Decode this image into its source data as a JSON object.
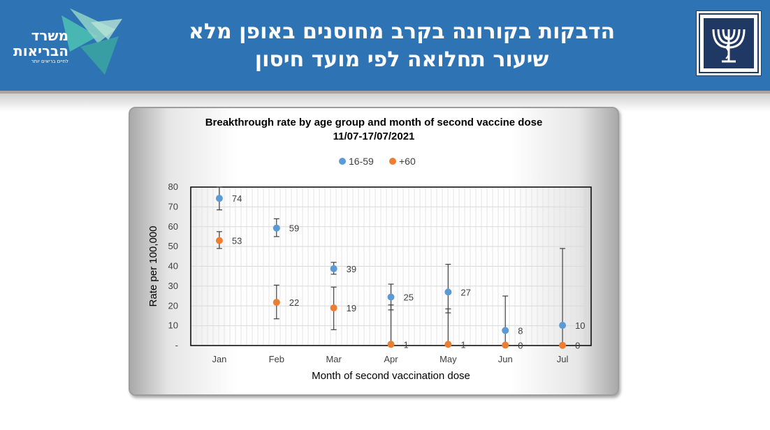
{
  "header": {
    "title_line1": "הדבקות בקורונה בקרב מחוסנים באופן מלא",
    "title_line2": "שיעור תחלואה לפי מועד חיסון",
    "background_color": "#2e74b5",
    "logo": {
      "name_line1": "משרד",
      "name_line2": "הבריאות",
      "tagline": "לחיים בריאים יותר"
    }
  },
  "chart_data": {
    "type": "scatter",
    "title": "Breakthrough rate by age group and month of second vaccine dose",
    "subtitle": "11/07-17/07/2021",
    "xlabel": "Month of second vaccination dose",
    "ylabel": "Rate per 100,000",
    "categories": [
      "Jan",
      "Feb",
      "Mar",
      "Apr",
      "May",
      "Jun",
      "Jul"
    ],
    "ylim": [
      0,
      80
    ],
    "yticks": [
      {
        "value": 0,
        "label": "-"
      },
      {
        "value": 10,
        "label": "10"
      },
      {
        "value": 20,
        "label": "20"
      },
      {
        "value": 30,
        "label": "30"
      },
      {
        "value": 40,
        "label": "40"
      },
      {
        "value": 50,
        "label": "50"
      },
      {
        "value": 60,
        "label": "60"
      },
      {
        "value": 70,
        "label": "70"
      },
      {
        "value": 80,
        "label": "80"
      }
    ],
    "grid": true,
    "legend_position": "top",
    "series": [
      {
        "name": "16-59",
        "color": "#5b9bd5",
        "values": [
          74.3,
          59.3,
          38.8,
          24.5,
          27.0,
          7.6,
          10.2
        ],
        "labels": [
          "74",
          "59",
          "39",
          "25",
          "27",
          "8",
          "10"
        ],
        "error_low": [
          68.5,
          55.0,
          36.0,
          18.0,
          16.5,
          0.5,
          0.5
        ],
        "error_high": [
          80.0,
          64.0,
          42.0,
          31.0,
          41.0,
          25.0,
          49.0
        ]
      },
      {
        "name": "+60",
        "color": "#ed7d31",
        "values": [
          53.0,
          21.8,
          19.0,
          0.6,
          0.6,
          0.2,
          0.1
        ],
        "labels": [
          "53",
          "22",
          "19",
          "1",
          "1",
          "0",
          "0"
        ],
        "error_low": [
          49.0,
          13.5,
          8.0,
          0.0,
          0.0,
          0.0,
          0.0
        ],
        "error_high": [
          57.5,
          30.5,
          29.5,
          20.5,
          18.5,
          1.0,
          1.0
        ]
      }
    ]
  }
}
